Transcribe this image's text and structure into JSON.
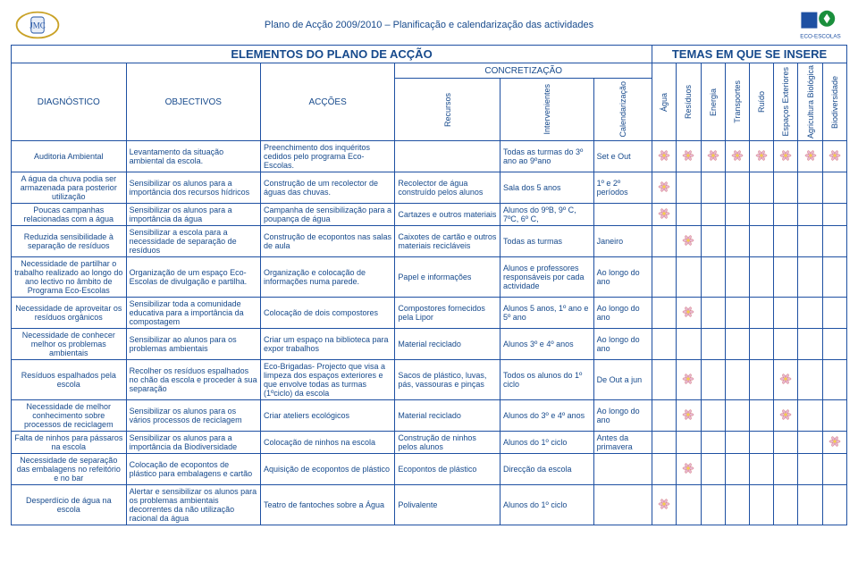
{
  "header": {
    "title": "Plano de Acção 2009/2010 – Planificação e calendarização das actividades"
  },
  "h_elementos": "ELEMENTOS DO PLANO DE ACÇÃO",
  "h_temas": "TEMAS EM QUE SE INSERE",
  "h_concretizacao": "CONCRETIZAÇÃO",
  "h_diag": "DIAGNÓSTICO",
  "h_obj": "OBJECTIVOS",
  "h_acc": "ACÇÕES",
  "sub": {
    "recursos": "Recursos",
    "interv": "Intervenientes",
    "calend": "Calendarização"
  },
  "themes": [
    "Água",
    "Resíduos",
    "Energia",
    "Transportes",
    "Ruído",
    "Espaços Exteriores",
    "Agricultura Biológica",
    "Biodiversidade"
  ],
  "rows": [
    {
      "diag": "Auditoria Ambiental",
      "obj": "Levantamento da situação ambiental da escola.",
      "acc": "Preenchimento dos inquéritos cedidos pelo programa Eco-Escolas.",
      "rec": "",
      "int": "Todas as turmas do 3º ano ao 9ºano",
      "cal": "Set e Out",
      "marks": [
        1,
        1,
        1,
        1,
        1,
        1,
        1,
        1
      ]
    },
    {
      "diag": "A água da chuva podia ser armazenada para posterior utilização",
      "obj": "Sensibilizar os alunos para a importância dos recursos hídricos",
      "acc": "Construção de um recolector de águas das chuvas.",
      "rec": "Recolector de água construído pelos alunos",
      "int": "Sala dos 5 anos",
      "cal": "1º e 2º períodos",
      "marks": [
        1,
        0,
        0,
        0,
        0,
        0,
        0,
        0
      ]
    },
    {
      "diag": "Poucas campanhas relacionadas com a água",
      "obj": "Sensibilizar os alunos para a importância da água",
      "acc": "Campanha de sensibilização para a poupança de água",
      "rec": "Cartazes e outros materiais",
      "int": "Alunos do 9ºB, 9º C, 7ºC, 6º C,",
      "cal": "",
      "marks": [
        1,
        0,
        0,
        0,
        0,
        0,
        0,
        0
      ]
    },
    {
      "diag": "Reduzida sensibilidade à separação de resíduos",
      "obj": "Sensibilizar a escola para a necessidade de separação de resíduos",
      "acc": "Construção de ecopontos nas salas de aula",
      "rec": "Caixotes de cartão e outros materiais recicláveis",
      "int": "Todas as turmas",
      "cal": "Janeiro",
      "marks": [
        0,
        1,
        0,
        0,
        0,
        0,
        0,
        0
      ]
    },
    {
      "diag": "Necessidade de partilhar o trabalho realizado ao longo do ano lectivo no âmbito de Programa Eco-Escolas",
      "obj": "Organização de um espaço Eco-Escolas de divulgação e partilha.",
      "acc": "Organização e colocação de informações numa parede.",
      "rec": "Papel e informações",
      "int": "Alunos e professores responsáveis por cada actividade",
      "cal": "Ao longo do ano",
      "marks": [
        0,
        0,
        0,
        0,
        0,
        0,
        0,
        0
      ]
    },
    {
      "diag": "Necessidade de aproveitar os resíduos orgânicos",
      "obj": "Sensibilizar toda a comunidade educativa para a importância da compostagem",
      "acc": "Colocação de dois compostores",
      "rec": "Compostores fornecidos pela Lipor",
      "int": "Alunos 5 anos, 1º ano e 5º ano",
      "cal": "Ao longo do ano",
      "marks": [
        0,
        1,
        0,
        0,
        0,
        0,
        0,
        0
      ]
    },
    {
      "diag": "Necessidade de conhecer melhor os problemas ambientais",
      "obj": "Sensibilizar ao alunos para os problemas ambientais",
      "acc": "Criar um espaço na biblioteca para expor trabalhos",
      "rec": "Material reciclado",
      "int": "Alunos 3º e 4º anos",
      "cal": "Ao longo do ano",
      "marks": [
        0,
        0,
        0,
        0,
        0,
        0,
        0,
        0
      ]
    },
    {
      "diag": "Resíduos espalhados pela escola",
      "obj": "Recolher os resíduos espalhados no chão da escola e proceder à sua separação",
      "acc": "Eco-Brigadas- Projecto que visa a limpeza dos espaços exteriores e que envolve todas as turmas (1ºciclo) da escola",
      "rec": "Sacos de plástico, luvas, pás, vassouras e pinças",
      "int": "Todos os alunos do 1º ciclo",
      "cal": "De Out a jun",
      "marks": [
        0,
        1,
        0,
        0,
        0,
        1,
        0,
        0
      ]
    },
    {
      "diag": "Necessidade de melhor conhecimento sobre processos de reciclagem",
      "obj": "Sensibilizar os alunos para os vários processos de reciclagem",
      "acc": "Criar ateliers ecológicos",
      "rec": "Material reciclado",
      "int": "Alunos do 3º e 4º anos",
      "cal": "Ao longo do ano",
      "marks": [
        0,
        1,
        0,
        0,
        0,
        1,
        0,
        0
      ]
    },
    {
      "diag": "Falta de ninhos para pássaros na escola",
      "obj": "Sensibilizar os alunos para a importância da Biodiversidade",
      "acc": "Colocação de  ninhos na escola",
      "rec": "Construção de ninhos pelos alunos",
      "int": "Alunos do 1º ciclo",
      "cal": "Antes da primavera",
      "marks": [
        0,
        0,
        0,
        0,
        0,
        0,
        0,
        1
      ]
    },
    {
      "diag": "Necessidade de separação das embalagens no refeitório e no bar",
      "obj": "Colocação de ecopontos de plástico para embalagens e cartão",
      "acc": "Aquisição de ecopontos de plástico",
      "rec": "Ecopontos de plástico",
      "int": "Direcção da escola",
      "cal": "",
      "marks": [
        0,
        1,
        0,
        0,
        0,
        0,
        0,
        0
      ]
    },
    {
      "diag": "Desperdício de água na escola",
      "obj": "Alertar e sensibilizar os alunos para os problemas ambientais decorrentes da não utilização racional da água",
      "acc": "Teatro de fantoches sobre a Água",
      "rec": "Polivalente",
      "int": "Alunos do 1º ciclo",
      "cal": "",
      "marks": [
        1,
        0,
        0,
        0,
        0,
        0,
        0,
        0
      ]
    }
  ]
}
